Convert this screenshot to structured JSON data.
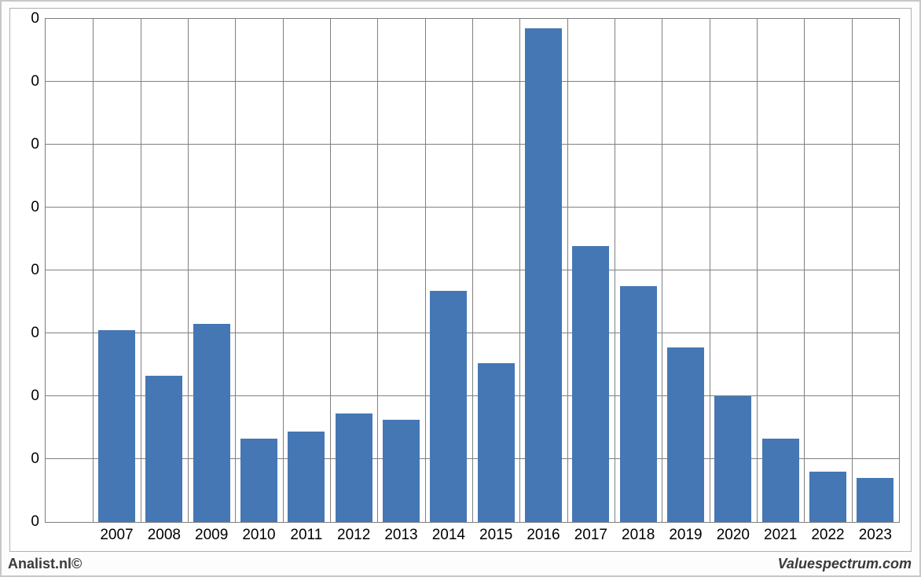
{
  "chart": {
    "type": "bar",
    "categories": [
      "2007",
      "2008",
      "2009",
      "2010",
      "2011",
      "2012",
      "2013",
      "2014",
      "2015",
      "2016",
      "2017",
      "2018",
      "2019",
      "2020",
      "2021",
      "2022",
      "2023"
    ],
    "values": [
      30.5,
      23.3,
      31.5,
      13.2,
      14.4,
      17.2,
      16.2,
      36.8,
      25.2,
      78.5,
      43.9,
      37.5,
      27.8,
      20.0,
      13.2,
      8.0,
      7.0
    ],
    "y_tick_count": 9,
    "y_tick_label": "0",
    "x_grid_count": 17,
    "bar_color": "#4577b4",
    "grid_color": "#808080",
    "background_color": "#ffffff",
    "bar_width_ratio": 0.78,
    "font_size_axis": 19
  },
  "footer": {
    "left": "Analist.nl©",
    "right": "Valuespectrum.com"
  }
}
